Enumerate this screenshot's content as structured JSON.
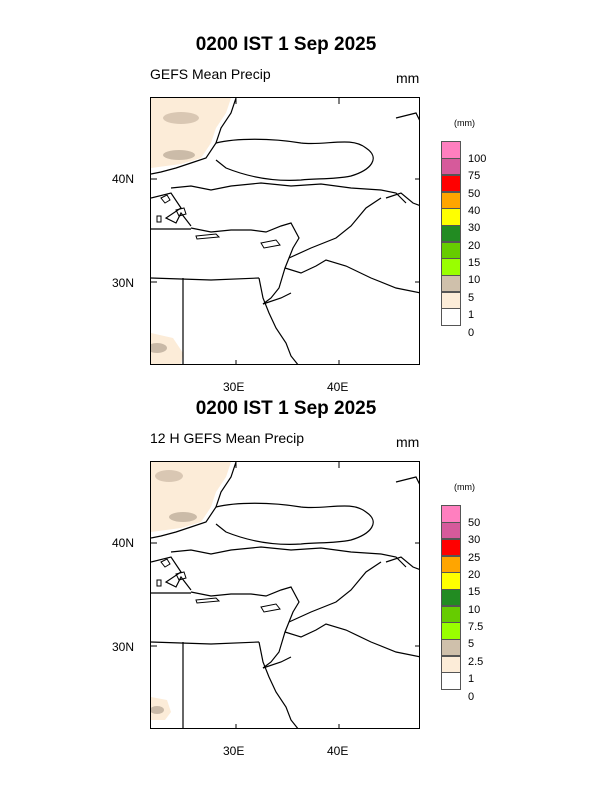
{
  "panels": [
    {
      "title": "0200 IST 1 Sep 2025",
      "subtitle": "GEFS Mean Precip",
      "units": "mm",
      "legend_unit": "(mm)",
      "legend_levels": [
        "100",
        "75",
        "50",
        "40",
        "30",
        "20",
        "15",
        "10",
        "5",
        "1",
        "0"
      ],
      "lat_labels": [
        "40N",
        "30N"
      ],
      "lon_labels": [
        "30E",
        "40E"
      ]
    },
    {
      "title": "0200 IST 1 Sep 2025",
      "subtitle": "12 H GEFS Mean Precip",
      "units": "mm",
      "legend_unit": "(mm)",
      "legend_levels": [
        "50",
        "30",
        "25",
        "20",
        "15",
        "10",
        "7.5",
        "5",
        "2.5",
        "1",
        "0"
      ],
      "lat_labels": [
        "40N",
        "30N"
      ],
      "lon_labels": [
        "30E",
        "40E"
      ]
    }
  ],
  "legend_colors": [
    "#ff7fbf",
    "#d65a9b",
    "#ff0000",
    "#ffa500",
    "#ffff00",
    "#228b22",
    "#66cc00",
    "#99ff00",
    "#cfc0ab",
    "#fcecd8",
    "#ffffff"
  ]
}
